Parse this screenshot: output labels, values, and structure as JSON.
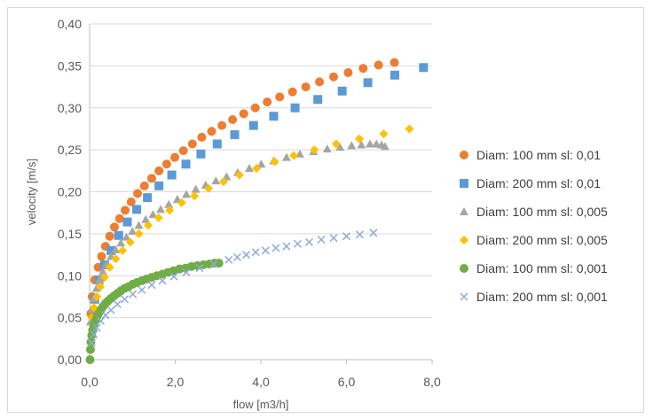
{
  "chart_data": {
    "type": "scatter",
    "title": "",
    "xlabel": "flow [m3/h]",
    "ylabel": "velocity [m/s]",
    "xlim": [
      0,
      8
    ],
    "ylim": [
      0,
      0.4
    ],
    "x_ticks": [
      "0,0",
      "2,0",
      "4,0",
      "6,0",
      "8,0"
    ],
    "y_ticks": [
      "0,00",
      "0,05",
      "0,10",
      "0,15",
      "0,20",
      "0,25",
      "0,30",
      "0,35",
      "0,40"
    ],
    "grid": "horizontal",
    "legend_position": "right",
    "series": [
      {
        "name": "Diam: 100 mm sl: 0,01",
        "color": "#ed7d31",
        "marker": "circle",
        "points": [
          [
            0.03,
            0.055
          ],
          [
            0.06,
            0.075
          ],
          [
            0.12,
            0.095
          ],
          [
            0.2,
            0.11
          ],
          [
            0.28,
            0.123
          ],
          [
            0.37,
            0.135
          ],
          [
            0.47,
            0.147
          ],
          [
            0.58,
            0.158
          ],
          [
            0.7,
            0.168
          ],
          [
            0.83,
            0.178
          ],
          [
            0.97,
            0.188
          ],
          [
            1.12,
            0.198
          ],
          [
            1.28,
            0.207
          ],
          [
            1.45,
            0.216
          ],
          [
            1.62,
            0.225
          ],
          [
            1.8,
            0.233
          ],
          [
            1.99,
            0.241
          ],
          [
            2.19,
            0.249
          ],
          [
            2.4,
            0.257
          ],
          [
            2.62,
            0.265
          ],
          [
            2.85,
            0.272
          ],
          [
            3.09,
            0.279
          ],
          [
            3.34,
            0.286
          ],
          [
            3.6,
            0.293
          ],
          [
            3.87,
            0.3
          ],
          [
            4.15,
            0.307
          ],
          [
            4.44,
            0.313
          ],
          [
            4.74,
            0.319
          ],
          [
            5.05,
            0.325
          ],
          [
            5.37,
            0.331
          ],
          [
            5.7,
            0.337
          ],
          [
            6.04,
            0.342
          ],
          [
            6.39,
            0.347
          ],
          [
            6.75,
            0.351
          ],
          [
            7.12,
            0.354
          ]
        ]
      },
      {
        "name": "Diam: 200 mm sl: 0,01",
        "color": "#5b9bd5",
        "marker": "square",
        "points": [
          [
            0.12,
            0.072
          ],
          [
            0.22,
            0.095
          ],
          [
            0.35,
            0.113
          ],
          [
            0.5,
            0.13
          ],
          [
            0.68,
            0.148
          ],
          [
            0.88,
            0.164
          ],
          [
            1.1,
            0.179
          ],
          [
            1.35,
            0.193
          ],
          [
            1.62,
            0.207
          ],
          [
            1.92,
            0.22
          ],
          [
            2.25,
            0.233
          ],
          [
            2.6,
            0.245
          ],
          [
            2.98,
            0.257
          ],
          [
            3.39,
            0.268
          ],
          [
            3.83,
            0.279
          ],
          [
            4.3,
            0.29
          ],
          [
            4.8,
            0.3
          ],
          [
            5.33,
            0.31
          ],
          [
            5.9,
            0.32
          ],
          [
            6.5,
            0.33
          ],
          [
            7.13,
            0.339
          ],
          [
            7.8,
            0.348
          ]
        ]
      },
      {
        "name": "Diam: 100 mm sl: 0,005",
        "color": "#a5a5a5",
        "marker": "triangle",
        "points": [
          [
            0.02,
            0.045
          ],
          [
            0.05,
            0.06
          ],
          [
            0.1,
            0.073
          ],
          [
            0.16,
            0.085
          ],
          [
            0.23,
            0.095
          ],
          [
            0.31,
            0.105
          ],
          [
            0.4,
            0.114
          ],
          [
            0.5,
            0.123
          ],
          [
            0.61,
            0.131
          ],
          [
            0.73,
            0.139
          ],
          [
            0.86,
            0.146
          ],
          [
            1.0,
            0.153
          ],
          [
            1.15,
            0.16
          ],
          [
            1.31,
            0.167
          ],
          [
            1.48,
            0.173
          ],
          [
            1.66,
            0.179
          ],
          [
            1.85,
            0.185
          ],
          [
            2.05,
            0.191
          ],
          [
            2.26,
            0.197
          ],
          [
            2.48,
            0.203
          ],
          [
            2.71,
            0.208
          ],
          [
            2.95,
            0.213
          ],
          [
            3.2,
            0.218
          ],
          [
            3.46,
            0.223
          ],
          [
            3.73,
            0.228
          ],
          [
            4.01,
            0.233
          ],
          [
            4.3,
            0.237
          ],
          [
            4.6,
            0.241
          ],
          [
            4.91,
            0.245
          ],
          [
            5.23,
            0.248
          ],
          [
            5.55,
            0.251
          ],
          [
            5.85,
            0.253
          ],
          [
            6.12,
            0.255
          ],
          [
            6.35,
            0.256
          ],
          [
            6.55,
            0.257
          ],
          [
            6.7,
            0.257
          ],
          [
            6.82,
            0.256
          ],
          [
            6.9,
            0.254
          ]
        ]
      },
      {
        "name": "Diam: 200 mm sl: 0,005",
        "color": "#ffc000",
        "marker": "diamond",
        "points": [
          [
            0.05,
            0.05
          ],
          [
            0.1,
            0.062
          ],
          [
            0.17,
            0.075
          ],
          [
            0.25,
            0.087
          ],
          [
            0.35,
            0.098
          ],
          [
            0.47,
            0.11
          ],
          [
            0.61,
            0.12
          ],
          [
            0.77,
            0.13
          ],
          [
            0.95,
            0.14
          ],
          [
            1.15,
            0.15
          ],
          [
            1.37,
            0.16
          ],
          [
            1.61,
            0.169
          ],
          [
            1.87,
            0.178
          ],
          [
            2.15,
            0.187
          ],
          [
            2.45,
            0.195
          ],
          [
            2.78,
            0.204
          ],
          [
            3.13,
            0.212
          ],
          [
            3.5,
            0.22
          ],
          [
            3.9,
            0.228
          ],
          [
            4.32,
            0.236
          ],
          [
            4.77,
            0.243
          ],
          [
            5.25,
            0.25
          ],
          [
            5.76,
            0.257
          ],
          [
            6.3,
            0.263
          ],
          [
            6.87,
            0.269
          ],
          [
            7.47,
            0.275
          ]
        ]
      },
      {
        "name": "Diam: 100 mm sl: 0,001",
        "color": "#70ad47",
        "marker": "circle",
        "points": [
          [
            0.01,
            0.0
          ],
          [
            0.02,
            0.012
          ],
          [
            0.03,
            0.021
          ],
          [
            0.05,
            0.029
          ],
          [
            0.07,
            0.035
          ],
          [
            0.1,
            0.041
          ],
          [
            0.13,
            0.046
          ],
          [
            0.17,
            0.051
          ],
          [
            0.21,
            0.055
          ],
          [
            0.26,
            0.059
          ],
          [
            0.31,
            0.063
          ],
          [
            0.37,
            0.067
          ],
          [
            0.43,
            0.07
          ],
          [
            0.5,
            0.073
          ],
          [
            0.57,
            0.076
          ],
          [
            0.65,
            0.079
          ],
          [
            0.73,
            0.082
          ],
          [
            0.82,
            0.085
          ],
          [
            0.91,
            0.087
          ],
          [
            1.01,
            0.09
          ],
          [
            1.11,
            0.092
          ],
          [
            1.22,
            0.094
          ],
          [
            1.33,
            0.096
          ],
          [
            1.45,
            0.098
          ],
          [
            1.57,
            0.1
          ],
          [
            1.7,
            0.102
          ],
          [
            1.83,
            0.104
          ],
          [
            1.96,
            0.106
          ],
          [
            2.1,
            0.108
          ],
          [
            2.24,
            0.109
          ],
          [
            2.38,
            0.111
          ],
          [
            2.52,
            0.112
          ],
          [
            2.66,
            0.113
          ],
          [
            2.8,
            0.114
          ],
          [
            2.92,
            0.115
          ],
          [
            3.02,
            0.115
          ]
        ]
      },
      {
        "name": "Diam: 200 mm sl: 0,001",
        "color": "#8faadc",
        "marker": "x",
        "points": [
          [
            0.05,
            0.02
          ],
          [
            0.1,
            0.03
          ],
          [
            0.17,
            0.038
          ],
          [
            0.26,
            0.046
          ],
          [
            0.37,
            0.053
          ],
          [
            0.5,
            0.059
          ],
          [
            0.65,
            0.066
          ],
          [
            0.82,
            0.072
          ],
          [
            1.01,
            0.078
          ],
          [
            1.22,
            0.083
          ],
          [
            1.45,
            0.089
          ],
          [
            1.7,
            0.094
          ],
          [
            1.97,
            0.099
          ],
          [
            2.26,
            0.104
          ],
          [
            2.57,
            0.109
          ],
          [
            2.9,
            0.114
          ],
          [
            3.25,
            0.119
          ],
          [
            3.45,
            0.122
          ],
          [
            3.66,
            0.125
          ],
          [
            3.88,
            0.128
          ],
          [
            4.11,
            0.13
          ],
          [
            4.35,
            0.133
          ],
          [
            4.6,
            0.135
          ],
          [
            4.86,
            0.138
          ],
          [
            5.13,
            0.14
          ],
          [
            5.41,
            0.143
          ],
          [
            5.7,
            0.145
          ],
          [
            6.0,
            0.147
          ],
          [
            6.31,
            0.149
          ],
          [
            6.63,
            0.151
          ]
        ]
      }
    ]
  }
}
